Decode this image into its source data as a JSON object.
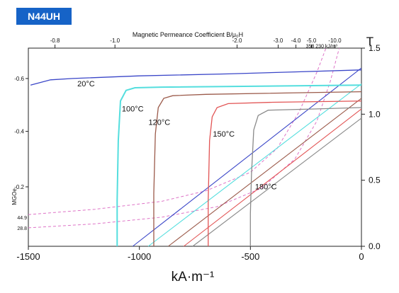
{
  "badge": {
    "label": "N44UH"
  },
  "colors": {
    "badge": "#1663c7",
    "c20": "#3a46c8",
    "c100": "#54dede",
    "c120": "#9b5a4a",
    "c150": "#e25454",
    "c180": "#8a8a8a",
    "dashed": "#de74c7"
  },
  "chart_data": {
    "type": "line",
    "title": "",
    "xlabel": "kA·m⁻¹",
    "ylabel_right": "T",
    "top_axis_label": "Magnetic Permeance Coefficient B/μ₀H",
    "left_axis_label": "MGOe",
    "xlim": [
      -1500,
      0
    ],
    "ylim_right": [
      0.0,
      1.5
    ],
    "xticks": [
      {
        "v": -1500,
        "label": "-1500"
      },
      {
        "v": -1000,
        "label": "-1000"
      },
      {
        "v": -500,
        "label": "-500"
      },
      {
        "v": 0,
        "label": "0"
      }
    ],
    "yticks_right": [
      {
        "v": 0.0,
        "label": "0.0"
      },
      {
        "v": 0.5,
        "label": "0.5"
      },
      {
        "v": 1.0,
        "label": "1.0"
      },
      {
        "v": 1.5,
        "label": "1.5"
      }
    ],
    "top_ticks": [
      {
        "label": "-0.8",
        "x": -1380
      },
      {
        "label": "-1.0",
        "x": -1110
      },
      {
        "label": "-2.0",
        "x": -560
      },
      {
        "label": "-3.0",
        "x": -375
      },
      {
        "label": "-4.0",
        "x": -295
      },
      {
        "label": "-5.0",
        "x": -225
      },
      {
        "label": "-10.0",
        "x": -120
      }
    ],
    "left_ticks": [
      {
        "label": "-0.6",
        "y": 1.27
      },
      {
        "label": "-0.4",
        "y": 0.87
      },
      {
        "label": "-0.2",
        "y": 0.45
      }
    ],
    "energy_labels": [
      {
        "label": "44.9",
        "y": 0.22
      },
      {
        "label": "28.8",
        "y": 0.14
      }
    ],
    "temp_legend": {
      "label": "358     230 kJ/m³",
      "x": -250,
      "y": 1.52
    },
    "demagnetization_curves": [
      {
        "name": "20°C",
        "label_at": [
          -1240,
          1.21
        ],
        "points": [
          [
            -1490,
            1.22
          ],
          [
            -1400,
            1.26
          ],
          [
            -1300,
            1.27
          ],
          [
            -1000,
            1.29
          ],
          [
            -600,
            1.305
          ],
          [
            -300,
            1.32
          ],
          [
            0,
            1.335
          ]
        ]
      },
      {
        "name": "100°C",
        "label_at": [
          -1030,
          1.02
        ],
        "points": [
          [
            -1100,
            0.0
          ],
          [
            -1100,
            0.35
          ],
          [
            -1095,
            0.8
          ],
          [
            -1085,
            1.1
          ],
          [
            -1060,
            1.18
          ],
          [
            -1020,
            1.2
          ],
          [
            -900,
            1.205
          ],
          [
            0,
            1.22
          ]
        ]
      },
      {
        "name": "120°C",
        "label_at": [
          -910,
          0.92
        ],
        "points": [
          [
            -935,
            0.0
          ],
          [
            -935,
            0.4
          ],
          [
            -928,
            0.85
          ],
          [
            -915,
            1.05
          ],
          [
            -890,
            1.12
          ],
          [
            -850,
            1.14
          ],
          [
            -700,
            1.15
          ],
          [
            0,
            1.17
          ]
        ]
      },
      {
        "name": "150°C",
        "label_at": [
          -620,
          0.83
        ],
        "points": [
          [
            -690,
            0.0
          ],
          [
            -690,
            0.35
          ],
          [
            -684,
            0.8
          ],
          [
            -672,
            0.98
          ],
          [
            -650,
            1.05
          ],
          [
            -600,
            1.08
          ],
          [
            -400,
            1.09
          ],
          [
            0,
            1.1
          ]
        ]
      },
      {
        "name": "180°C",
        "label_at": [
          -430,
          0.43
        ],
        "points": [
          [
            -500,
            0.0
          ],
          [
            -500,
            0.25
          ],
          [
            -495,
            0.55
          ],
          [
            -485,
            0.88
          ],
          [
            -465,
            0.99
          ],
          [
            -420,
            1.03
          ],
          [
            -200,
            1.04
          ],
          [
            0,
            1.05
          ]
        ]
      }
    ],
    "induction_lines": [
      {
        "color": "c20",
        "points": [
          [
            -1030,
            0.0
          ],
          [
            0,
            1.35
          ]
        ]
      },
      {
        "color": "c100",
        "points": [
          [
            -960,
            0.0
          ],
          [
            0,
            1.23
          ]
        ]
      },
      {
        "color": "c120",
        "points": [
          [
            -870,
            0.0
          ],
          [
            0,
            1.12
          ]
        ]
      },
      {
        "color": "c150",
        "points": [
          [
            -800,
            0.0
          ],
          [
            0,
            1.04
          ]
        ]
      },
      {
        "color": "c180",
        "points": [
          [
            -760,
            0.0
          ],
          [
            0,
            0.97
          ]
        ]
      }
    ],
    "energy_curves": [
      {
        "color": "dashed",
        "points": [
          [
            -1500,
            0.24
          ],
          [
            -1200,
            0.28
          ],
          [
            -900,
            0.34
          ],
          [
            -700,
            0.42
          ],
          [
            -500,
            0.56
          ],
          [
            -380,
            0.74
          ],
          [
            -280,
            1.02
          ],
          [
            -200,
            1.32
          ],
          [
            -160,
            1.5
          ]
        ]
      },
      {
        "color": "dashed",
        "points": [
          [
            -1500,
            0.14
          ],
          [
            -1200,
            0.17
          ],
          [
            -900,
            0.22
          ],
          [
            -650,
            0.3
          ],
          [
            -450,
            0.44
          ],
          [
            -300,
            0.66
          ],
          [
            -200,
            0.95
          ],
          [
            -140,
            1.25
          ],
          [
            -100,
            1.5
          ]
        ]
      }
    ]
  }
}
